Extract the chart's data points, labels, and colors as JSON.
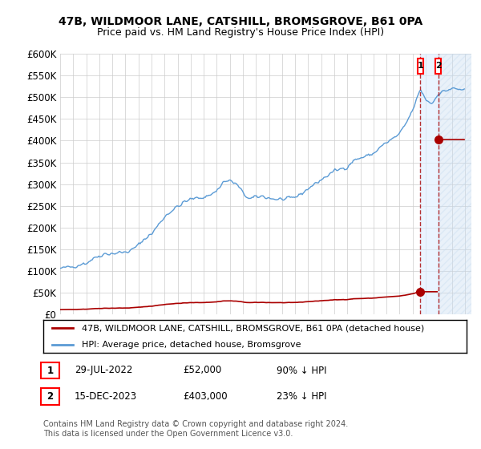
{
  "title1": "47B, WILDMOOR LANE, CATSHILL, BROMSGROVE, B61 0PA",
  "title2": "Price paid vs. HM Land Registry's House Price Index (HPI)",
  "ylim": [
    0,
    600000
  ],
  "yticks": [
    0,
    50000,
    100000,
    150000,
    200000,
    250000,
    300000,
    350000,
    400000,
    450000,
    500000,
    550000,
    600000
  ],
  "ytick_labels": [
    "£0",
    "£50K",
    "£100K",
    "£150K",
    "£200K",
    "£250K",
    "£300K",
    "£350K",
    "£400K",
    "£450K",
    "£500K",
    "£550K",
    "£600K"
  ],
  "hpi_color": "#5b9bd5",
  "price_color": "#aa0000",
  "marker_dot_color": "#aa0000",
  "legend_label_1": "47B, WILDMOOR LANE, CATSHILL, BROMSGROVE, B61 0PA (detached house)",
  "legend_label_2": "HPI: Average price, detached house, Bromsgrove",
  "transaction_1_date": "29-JUL-2022",
  "transaction_1_price": "£52,000",
  "transaction_1_hpi": "90% ↓ HPI",
  "transaction_2_date": "15-DEC-2023",
  "transaction_2_price": "£403,000",
  "transaction_2_hpi": "23% ↓ HPI",
  "footnote": "Contains HM Land Registry data © Crown copyright and database right 2024.\nThis data is licensed under the Open Government Licence v3.0.",
  "background_color": "#ffffff",
  "grid_color": "#cccccc",
  "shade_color": "#ddeeff",
  "hatch_color": "#c8dcf0",
  "xlim_start": 1995,
  "xlim_end": 2026.5,
  "t1_x": 2022.583,
  "t1_y": 52000,
  "t2_x": 2023.958,
  "t2_y": 403000
}
